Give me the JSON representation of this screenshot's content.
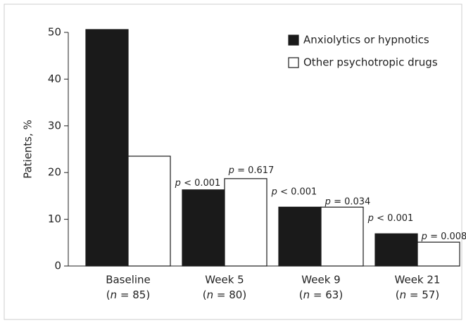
{
  "chart_data": {
    "type": "bar",
    "ylabel": "Patients, %",
    "categories": [
      "Baseline",
      "Week 5",
      "Week 9",
      "Week 21"
    ],
    "category_sublabels": [
      "(n = 85)",
      "(n = 80)",
      "(n = 63)",
      "(n = 57)"
    ],
    "series": [
      {
        "name": "Anxiolytics or hypnotics",
        "color": "#1a1a1a",
        "values": [
          50.6,
          16.3,
          12.6,
          6.9
        ],
        "annotations": [
          null,
          "p < 0.001",
          "p < 0.001",
          "p < 0.001"
        ]
      },
      {
        "name": "Other psychotropic drugs",
        "color": "#ffffff",
        "values": [
          23.5,
          18.7,
          12.6,
          5.1
        ],
        "annotations": [
          null,
          "p = 0.617",
          "p = 0.034",
          "p = 0.008"
        ]
      }
    ],
    "ylim": [
      0,
      50
    ],
    "yticks": [
      0,
      10,
      20,
      30,
      40,
      50
    ],
    "grid": false,
    "legend": "upper right"
  }
}
